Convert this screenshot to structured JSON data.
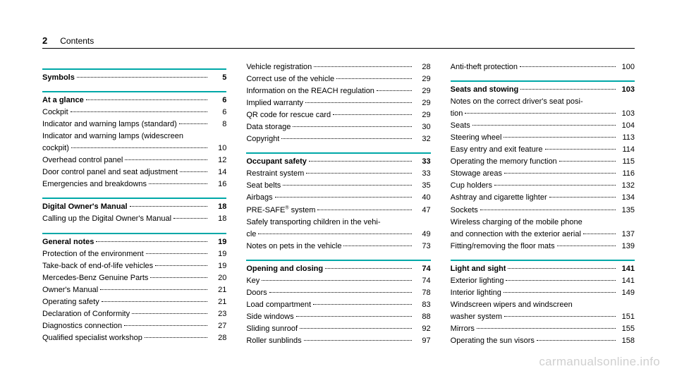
{
  "header": {
    "page_num": "2",
    "title": "Contents"
  },
  "watermark": "carmanualsonline.info",
  "columns": [
    [
      {
        "type": "rule"
      },
      {
        "type": "entry",
        "bold": true,
        "label": "Symbols",
        "page": "5"
      },
      {
        "type": "rule"
      },
      {
        "type": "entry",
        "bold": true,
        "label": "At a glance",
        "page": "6"
      },
      {
        "type": "entry",
        "label": "Cockpit",
        "page": "6"
      },
      {
        "type": "entry",
        "label": "Indicator and warning lamps (standard)",
        "page": "8"
      },
      {
        "type": "text",
        "label": "Indicator and warning lamps (widescreen"
      },
      {
        "type": "entry",
        "label": "cockpit)",
        "page": "10"
      },
      {
        "type": "entry",
        "label": "Overhead control panel",
        "page": "12"
      },
      {
        "type": "entry",
        "label": "Door control panel and seat adjustment",
        "page": "14"
      },
      {
        "type": "entry",
        "label": "Emergencies and breakdowns",
        "page": "16"
      },
      {
        "type": "rule"
      },
      {
        "type": "entry",
        "bold": true,
        "label": "Digital Owner's Manual",
        "page": "18"
      },
      {
        "type": "entry",
        "label": "Calling up the Digital Owner's Manual",
        "page": "18"
      },
      {
        "type": "rule"
      },
      {
        "type": "entry",
        "bold": true,
        "label": "General notes",
        "page": "19"
      },
      {
        "type": "entry",
        "label": "Protection of the environment",
        "page": "19"
      },
      {
        "type": "entry",
        "label": "Take-back of end-of-life vehicles",
        "page": "19"
      },
      {
        "type": "entry",
        "label": "Mercedes-Benz Genuine Parts",
        "page": "20"
      },
      {
        "type": "entry",
        "label": "Owner's Manual",
        "page": "21"
      },
      {
        "type": "entry",
        "label": "Operating safety",
        "page": "21"
      },
      {
        "type": "entry",
        "label": "Declaration of Conformity",
        "page": "23"
      },
      {
        "type": "entry",
        "label": "Diagnostics connection",
        "page": "27"
      },
      {
        "type": "entry",
        "label": "Qualified specialist workshop",
        "page": "28"
      }
    ],
    [
      {
        "type": "entry",
        "label": "Vehicle registration",
        "page": "28"
      },
      {
        "type": "entry",
        "label": "Correct use of the vehicle",
        "page": "29"
      },
      {
        "type": "entry",
        "label": "Information on the REACH regulation",
        "page": "29"
      },
      {
        "type": "entry",
        "label": "Implied warranty",
        "page": "29"
      },
      {
        "type": "entry",
        "label": "QR code for rescue card",
        "page": "29"
      },
      {
        "type": "entry",
        "label": "Data storage",
        "page": "30"
      },
      {
        "type": "entry",
        "label": "Copyright",
        "page": "32"
      },
      {
        "type": "rule"
      },
      {
        "type": "entry",
        "bold": true,
        "label": "Occupant safety",
        "page": "33"
      },
      {
        "type": "entry",
        "label": "Restraint system",
        "page": "33"
      },
      {
        "type": "entry",
        "label": "Seat belts",
        "page": "35"
      },
      {
        "type": "entry",
        "label": "Airbags",
        "page": "40"
      },
      {
        "type": "entry",
        "label": "PRE-SAFE<sup>®</sup> system",
        "page": "47"
      },
      {
        "type": "text",
        "label": "Safely transporting children in the vehi-"
      },
      {
        "type": "entry",
        "label": "cle",
        "page": "49"
      },
      {
        "type": "entry",
        "label": "Notes on pets in the vehicle",
        "page": "73"
      },
      {
        "type": "rule"
      },
      {
        "type": "entry",
        "bold": true,
        "label": "Opening and closing",
        "page": "74"
      },
      {
        "type": "entry",
        "label": "Key",
        "page": "74"
      },
      {
        "type": "entry",
        "label": "Doors",
        "page": "78"
      },
      {
        "type": "entry",
        "label": "Load compartment",
        "page": "83"
      },
      {
        "type": "entry",
        "label": "Side windows",
        "page": "88"
      },
      {
        "type": "entry",
        "label": "Sliding sunroof",
        "page": "92"
      },
      {
        "type": "entry",
        "label": "Roller sunblinds",
        "page": "97"
      }
    ],
    [
      {
        "type": "entry",
        "label": "Anti-theft protection",
        "page": "100"
      },
      {
        "type": "rule"
      },
      {
        "type": "entry",
        "bold": true,
        "label": "Seats and stowing",
        "page": "103"
      },
      {
        "type": "text",
        "label": "Notes on the correct driver's seat posi-"
      },
      {
        "type": "entry",
        "label": "tion",
        "page": "103"
      },
      {
        "type": "entry",
        "label": "Seats",
        "page": "104"
      },
      {
        "type": "entry",
        "label": "Steering wheel",
        "page": "113"
      },
      {
        "type": "entry",
        "label": "Easy entry and exit feature",
        "page": "114"
      },
      {
        "type": "entry",
        "label": "Operating the memory function",
        "page": "115"
      },
      {
        "type": "entry",
        "label": "Stowage areas",
        "page": "116"
      },
      {
        "type": "entry",
        "label": "Cup holders",
        "page": "132"
      },
      {
        "type": "entry",
        "label": "Ashtray and cigarette lighter",
        "page": "134"
      },
      {
        "type": "entry",
        "label": "Sockets",
        "page": "135"
      },
      {
        "type": "text",
        "label": "Wireless charging of the mobile phone"
      },
      {
        "type": "entry",
        "label": "and connection with the exterior aerial",
        "page": "137"
      },
      {
        "type": "entry",
        "label": "Fitting/removing the floor mats",
        "page": "139"
      },
      {
        "type": "rule"
      },
      {
        "type": "entry",
        "bold": true,
        "label": "Light and sight",
        "page": "141"
      },
      {
        "type": "entry",
        "label": "Exterior lighting",
        "page": "141"
      },
      {
        "type": "entry",
        "label": "Interior lighting",
        "page": "149"
      },
      {
        "type": "text",
        "label": "Windscreen wipers and windscreen"
      },
      {
        "type": "entry",
        "label": "washer system",
        "page": "151"
      },
      {
        "type": "entry",
        "label": "Mirrors",
        "page": "155"
      },
      {
        "type": "entry",
        "label": "Operating the sun visors",
        "page": "158"
      }
    ]
  ]
}
